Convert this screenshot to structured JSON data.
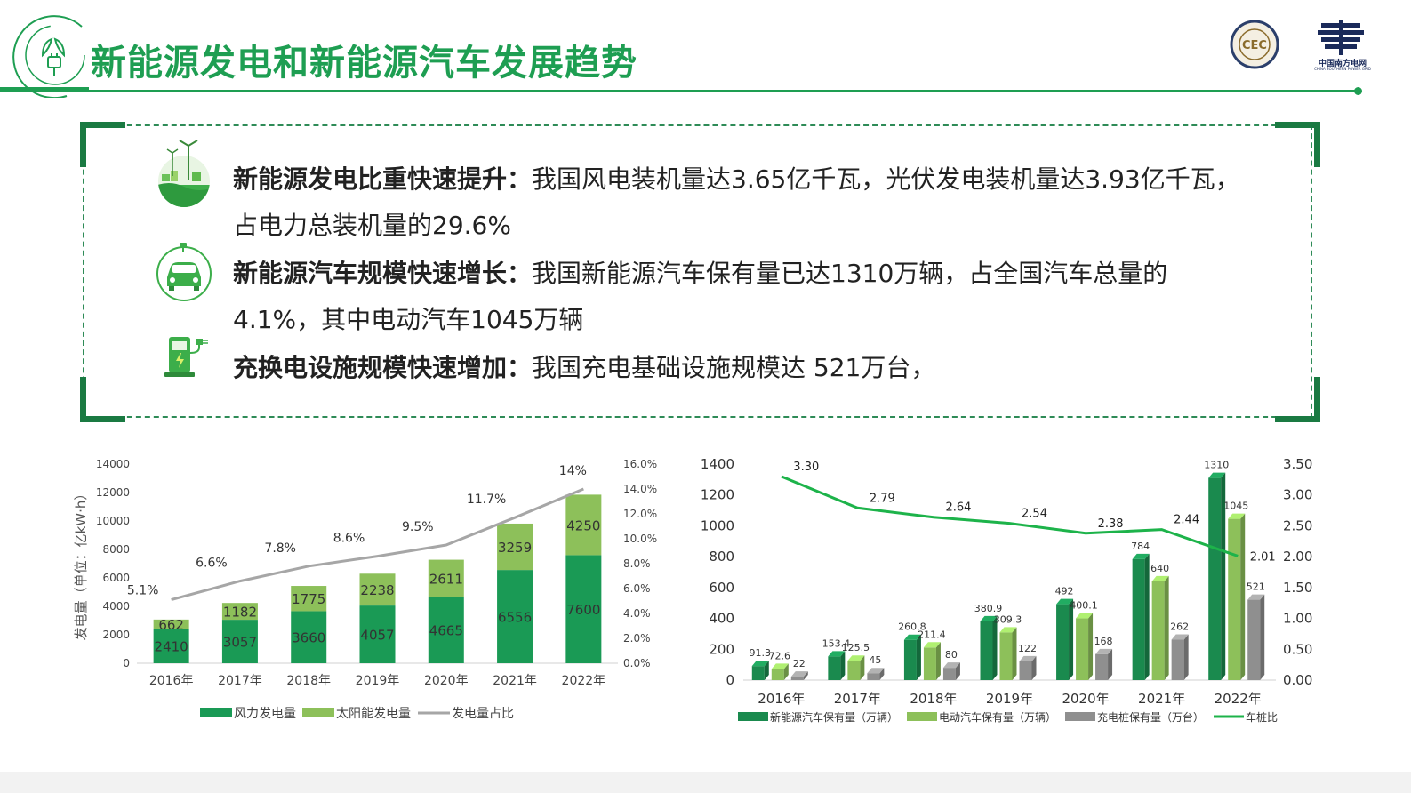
{
  "page_title": "新能源发电和新能源汽车发展趋势",
  "logos": {
    "cec_label": "CEC",
    "csg_name": "中国南方电网",
    "csg_name_en": "CHINA SOUTHERN POWER GRID"
  },
  "bullets": [
    {
      "icon": "wind-solar-globe-icon",
      "heading": "新能源发电比重快速提升：",
      "body": "我国风电装机量达3.65亿千瓦，光伏发电装机量达3.93亿千瓦，占电力总装机量的29.6%"
    },
    {
      "icon": "electric-car-icon",
      "heading": "新能源汽车规模快速增长：",
      "body": "我国新能源汽车保有量已达1310万辆，占全国汽车总量的4.1%，其中电动汽车1045万辆"
    },
    {
      "icon": "charging-pile-icon",
      "heading": "充换电设施规模快速增加：",
      "body": "我国充电基础设施规模达 521万台，"
    }
  ],
  "colors": {
    "brand_green": "#1e9e52",
    "dark_green": "#1a8a4e",
    "light_green": "#8dc05a",
    "gray": "#9a9a9a",
    "line_gray": "#a6a6a6",
    "line_green": "#1db34a"
  },
  "chart_data": [
    {
      "type": "bar",
      "stacked": true,
      "categories": [
        "2016年",
        "2017年",
        "2018年",
        "2019年",
        "2020年",
        "2021年",
        "2022年"
      ],
      "ylabel": "发电量（单位：亿kW·h）",
      "ylim": [
        0,
        14000
      ],
      "y_ticks": [
        "0",
        "2000",
        "4000",
        "6000",
        "8000",
        "10000",
        "12000",
        "14000"
      ],
      "y2lim": [
        0,
        16
      ],
      "y2_ticks": [
        "0.0%",
        "2.0%",
        "4.0%",
        "6.0%",
        "8.0%",
        "10.0%",
        "12.0%",
        "14.0%",
        "16.0%"
      ],
      "series": [
        {
          "name": "风力发电量",
          "values": [
            2410,
            3057,
            3660,
            4057,
            4665,
            6556,
            7600
          ],
          "labels": [
            "2410",
            "3057",
            "3660",
            "4057",
            "4665",
            "6556",
            "7600"
          ],
          "color": "#1a9a55"
        },
        {
          "name": "太阳能发电量",
          "values": [
            662,
            1182,
            1775,
            2238,
            2611,
            3259,
            4250
          ],
          "labels": [
            "662",
            "1182",
            "1775",
            "2238",
            "2611",
            "3259",
            "4250"
          ],
          "color": "#8dc05a"
        },
        {
          "name": "发电量占比",
          "type": "line",
          "axis": "right",
          "values": [
            5.1,
            6.6,
            7.8,
            8.6,
            9.5,
            11.7,
            14
          ],
          "labels": [
            "5.1%",
            "6.6%",
            "7.8%",
            "8.6%",
            "9.5%",
            "11.7%",
            "14%"
          ],
          "color": "#a6a6a6"
        }
      ],
      "legend": "bottom",
      "grid": false
    },
    {
      "type": "bar",
      "categories": [
        "2016年",
        "2017年",
        "2018年",
        "2019年",
        "2020年",
        "2021年",
        "2022年"
      ],
      "ylim": [
        0,
        1400
      ],
      "y_ticks": [
        "0",
        "200",
        "400",
        "600",
        "800",
        "1000",
        "1200",
        "1400"
      ],
      "y2lim": [
        0,
        3.5
      ],
      "y2_ticks": [
        "0.00",
        "0.50",
        "1.00",
        "1.50",
        "2.00",
        "2.50",
        "3.00",
        "3.50"
      ],
      "series": [
        {
          "name": "新能源汽车保有量（万辆）",
          "values": [
            91.3,
            153.4,
            260.8,
            380.9,
            492,
            784,
            1310
          ],
          "labels": [
            "91.3",
            "153.4",
            "260.8",
            "380.9",
            "492",
            "784",
            "1310"
          ],
          "color": "#1a8a4e"
        },
        {
          "name": "电动汽车保有量（万辆）",
          "values": [
            72.6,
            125.5,
            211.4,
            309.3,
            400.1,
            640,
            1045
          ],
          "labels": [
            "72.6",
            "125.5",
            "211.4",
            "309.3",
            "400.1",
            "640",
            "1045"
          ],
          "color": "#8dc05a"
        },
        {
          "name": "充电桩保有量（万台）",
          "values": [
            22,
            45,
            80,
            122,
            168,
            262,
            521
          ],
          "labels": [
            "22",
            "45",
            "80",
            "122",
            "168",
            "262",
            "521"
          ],
          "color": "#8f8f8f"
        },
        {
          "name": "车桩比",
          "type": "line",
          "axis": "right",
          "values": [
            3.3,
            2.79,
            2.64,
            2.54,
            2.38,
            2.44,
            2.01
          ],
          "labels": [
            "3.30",
            "2.79",
            "2.64",
            "2.54",
            "2.38",
            "2.44",
            "2.01"
          ],
          "color": "#1db34a"
        }
      ],
      "legend": "bottom",
      "grid": false
    }
  ]
}
